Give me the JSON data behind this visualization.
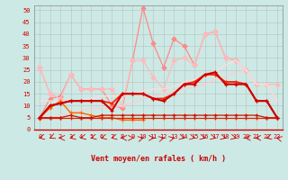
{
  "background_color": "#cce9e5",
  "grid_color": "#b0b0b0",
  "xlabel": "Vent moyen/en rafales ( km/h )",
  "ylabel_ticks": [
    0,
    5,
    10,
    15,
    20,
    25,
    30,
    35,
    40,
    45,
    50
  ],
  "xlim": [
    -0.5,
    23.5
  ],
  "ylim": [
    0,
    52
  ],
  "x": [
    0,
    1,
    2,
    3,
    4,
    5,
    6,
    7,
    8,
    9,
    10,
    11,
    12,
    13,
    14,
    15,
    16,
    17,
    18,
    19,
    20,
    21,
    22,
    23
  ],
  "lines": [
    {
      "y": [
        26,
        15,
        13,
        null,
        null,
        null,
        null,
        null,
        null,
        null,
        null,
        null,
        null,
        null,
        null,
        null,
        null,
        null,
        null,
        null,
        null,
        null,
        null,
        null
      ],
      "color": "#ffaaaa",
      "lw": 0.9,
      "marker": "D",
      "ms": 2.5
    },
    {
      "y": [
        5,
        13,
        14,
        23,
        17,
        17,
        17,
        10,
        9,
        29,
        51,
        36,
        26,
        38,
        35,
        27,
        40,
        41,
        30,
        29,
        25,
        null,
        null,
        null
      ],
      "color": "#ff8888",
      "lw": 0.9,
      "marker": "D",
      "ms": 2.5
    },
    {
      "y": [
        26,
        15,
        13,
        23,
        17,
        17,
        17,
        17,
        10,
        29,
        29,
        22,
        17,
        29,
        30,
        27,
        40,
        41,
        30,
        29,
        25,
        19,
        19,
        19
      ],
      "color": "#ffbbbb",
      "lw": 0.9,
      "marker": "D",
      "ms": 2.5
    },
    {
      "y": [
        5,
        5,
        6,
        7,
        8,
        9,
        9,
        9,
        10,
        11,
        13,
        14,
        15,
        16,
        17,
        18,
        19,
        21,
        22,
        24,
        25,
        19,
        19,
        12
      ],
      "color": "#ffcccc",
      "lw": 0.9,
      "marker": null,
      "ms": 0
    },
    {
      "y": [
        12,
        12,
        12,
        12,
        12,
        13,
        14,
        14,
        14,
        15,
        16,
        17,
        17,
        18,
        20,
        21,
        22,
        24,
        27,
        29,
        25,
        19,
        19,
        12
      ],
      "color": "#ffdddd",
      "lw": 0.9,
      "marker": null,
      "ms": 0
    },
    {
      "y": [
        5,
        9,
        12,
        7,
        7,
        6,
        5,
        5,
        4,
        4,
        4,
        null,
        null,
        null,
        null,
        null,
        null,
        null,
        null,
        null,
        null,
        null,
        null,
        null
      ],
      "color": "#ff6600",
      "lw": 1.0,
      "marker": "+",
      "ms": 3.5
    },
    {
      "y": [
        5,
        5,
        5,
        5,
        5,
        5,
        5,
        5,
        5,
        5,
        5,
        5,
        5,
        5,
        5,
        5,
        5,
        5,
        5,
        5,
        5,
        5,
        5,
        5
      ],
      "color": "#dd2200",
      "lw": 0.9,
      "marker": "+",
      "ms": 3.0
    },
    {
      "y": [
        5,
        5,
        5,
        6,
        5,
        5,
        6,
        6,
        6,
        6,
        6,
        6,
        6,
        6,
        6,
        6,
        6,
        6,
        6,
        6,
        6,
        6,
        5,
        5
      ],
      "color": "#cc1100",
      "lw": 0.9,
      "marker": "+",
      "ms": 3.0
    },
    {
      "y": [
        5,
        10,
        11,
        12,
        12,
        12,
        12,
        11,
        15,
        15,
        15,
        13,
        13,
        15,
        19,
        20,
        23,
        23,
        20,
        20,
        19,
        12,
        12,
        5
      ],
      "color": "#ff2200",
      "lw": 1.3,
      "marker": "+",
      "ms": 3.5
    },
    {
      "y": [
        5,
        10,
        11,
        12,
        12,
        12,
        12,
        8,
        15,
        15,
        15,
        13,
        12,
        15,
        19,
        19,
        23,
        24,
        19,
        19,
        19,
        12,
        12,
        5
      ],
      "color": "#cc0000",
      "lw": 1.5,
      "marker": "+",
      "ms": 3.5
    }
  ],
  "arrow_angles": [
    225,
    210,
    270,
    225,
    225,
    225,
    225,
    225,
    270,
    90,
    45,
    90,
    45,
    45,
    135,
    135,
    135,
    135,
    135,
    135,
    270,
    270,
    225,
    315
  ]
}
